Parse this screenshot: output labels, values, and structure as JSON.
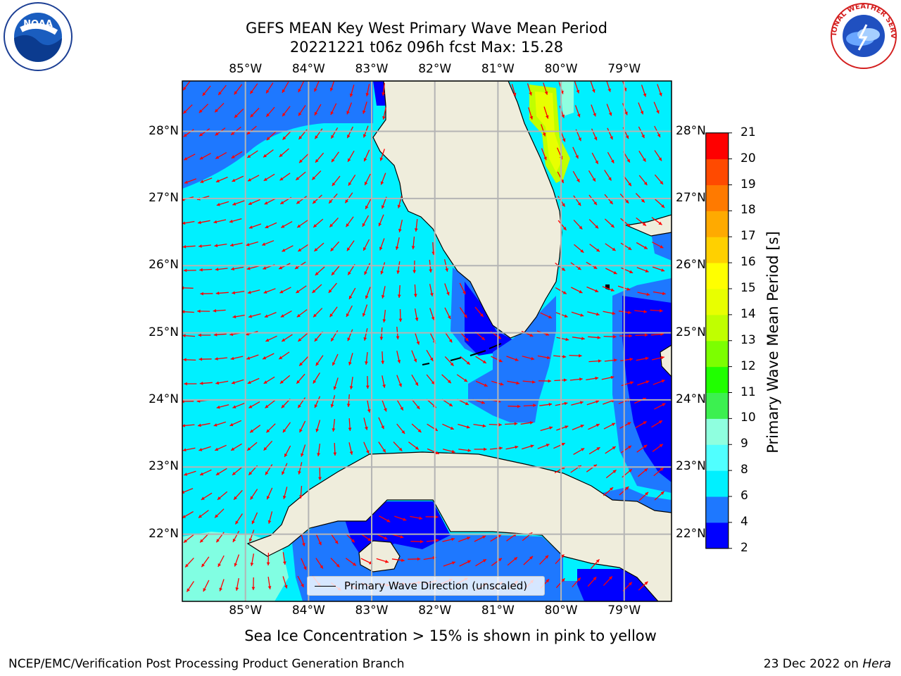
{
  "title_line1": "GEFS MEAN Key West Primary Wave Mean Period",
  "title_line2": "20221221 t06z 096h fcst   Max: 15.28",
  "subtitle": "Sea Ice Concentration > 15% is shown in pink to yellow",
  "footer_left": "NCEP/EMC/Verification Post Processing Product Generation Branch",
  "footer_date": "23 Dec 2022 on",
  "footer_host": "Hera",
  "legend_label": "Primary Wave Direction (unscaled)",
  "logos": {
    "noaa_text": "NOAA",
    "nws_text": "NATIONAL WEATHER SERVICE"
  },
  "map": {
    "lon_range": [
      -86.0,
      -78.25
    ],
    "lat_range": [
      21.0,
      28.75
    ],
    "lon_ticks": [
      "85°W",
      "84°W",
      "83°W",
      "82°W",
      "81°W",
      "80°W",
      "79°W"
    ],
    "lat_ticks": [
      "22°N",
      "23°N",
      "24°N",
      "25°N",
      "26°N",
      "27°N",
      "28°N"
    ],
    "land_color": "#efeddc",
    "arrow_color": "#ff0000",
    "grid_color": "#b4b4b4",
    "gridlines": true
  },
  "colorbar": {
    "label": "Primary Wave Mean Period [s]",
    "ticks": [
      "2",
      "4",
      "6",
      "8",
      "9",
      "10",
      "11",
      "12",
      "13",
      "14",
      "15",
      "16",
      "17",
      "18",
      "19",
      "20",
      "21"
    ],
    "colors": [
      "#0000ff",
      "#1e78ff",
      "#00f0ff",
      "#50ffff",
      "#8fffdf",
      "#3cf050",
      "#20ff00",
      "#7cff00",
      "#c0ff00",
      "#e8ff00",
      "#ffff00",
      "#ffd000",
      "#ffaa00",
      "#ff7a00",
      "#ff4a00",
      "#ff0000"
    ]
  }
}
